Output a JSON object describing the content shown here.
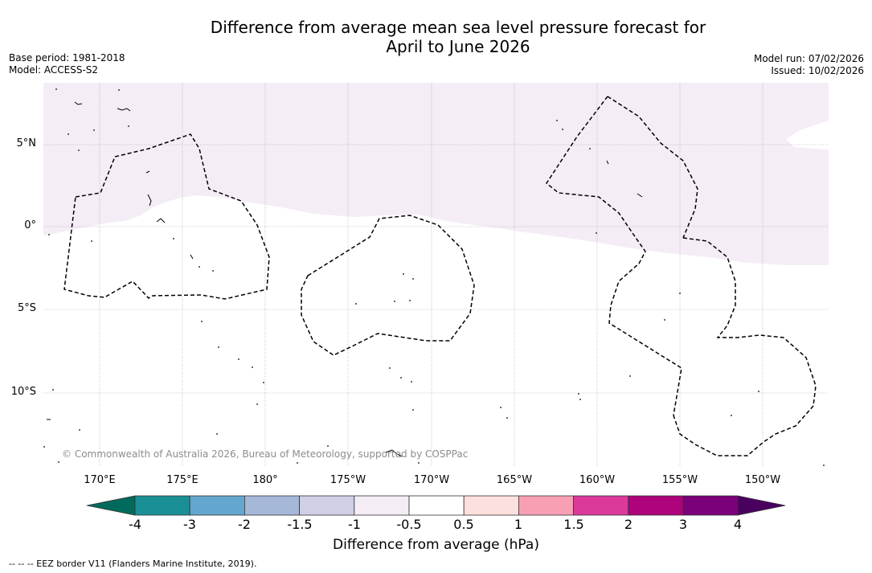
{
  "title": {
    "line1": "Difference from average mean sea level pressure forecast for",
    "line2": "April to June 2026"
  },
  "meta_left": {
    "base_period": "Base period: 1981-2018",
    "model": "Model: ACCESS-S2"
  },
  "meta_right": {
    "model_run": "Model run: 07/02/2026",
    "issued": "Issued: 10/02/2026"
  },
  "map": {
    "lat_labels": [
      "5°N",
      "0°",
      "5°S",
      "10°S"
    ],
    "lon_labels": [
      "170°E",
      "175°E",
      "180°",
      "175°W",
      "170°W",
      "165°W",
      "160°W",
      "155°W",
      "150°W"
    ],
    "copyright": "© Commonwealth of Australia 2026, Bureau of Meteorology, supported by COSPPac",
    "anomaly_fill_color": "#f4edf6",
    "anomaly_range_hpa": "-1 to -0.5"
  },
  "colorbar": {
    "ticks": [
      "-4",
      "-3",
      "-2",
      "-1.5",
      "-1",
      "-0.5",
      "0.5",
      "1",
      "1.5",
      "2",
      "3",
      "4"
    ],
    "colors": [
      "#1b8f96",
      "#63a7cf",
      "#a6b8d8",
      "#cfcfe6",
      "#f4edf6",
      "#ffffff",
      "#fce0dd",
      "#f99fb3",
      "#db3a9b",
      "#ad037b",
      "#7a017a"
    ],
    "under_color": "#006b5c",
    "over_color": "#49005f",
    "label": "Difference from average (hPa)"
  },
  "footnote": "--  --  -- EEZ border V11 (Flanders Marine Institute, 2019)."
}
